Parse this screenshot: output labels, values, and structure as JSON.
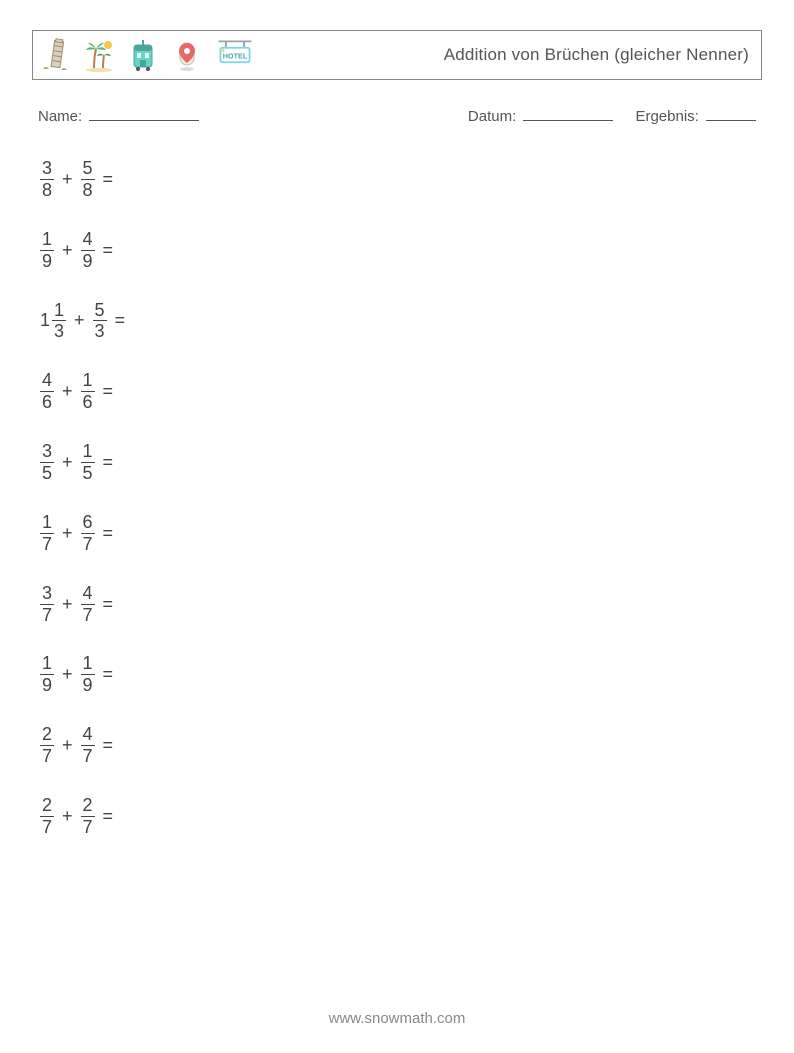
{
  "header": {
    "title": "Addition von Brüchen (gleicher Nenner)",
    "icons": [
      "pisa-tower-icon",
      "palm-trees-icon",
      "tram-icon",
      "map-pin-icon",
      "hotel-sign-icon"
    ]
  },
  "meta": {
    "name_label": "Name:",
    "date_label": "Datum:",
    "result_label": "Ergebnis:"
  },
  "op_symbol": "+",
  "eq_symbol": "=",
  "problems": [
    {
      "a_whole": "",
      "a_num": "3",
      "a_den": "8",
      "b_num": "5",
      "b_den": "8"
    },
    {
      "a_whole": "",
      "a_num": "1",
      "a_den": "9",
      "b_num": "4",
      "b_den": "9"
    },
    {
      "a_whole": "1",
      "a_num": "1",
      "a_den": "3",
      "b_num": "5",
      "b_den": "3"
    },
    {
      "a_whole": "",
      "a_num": "4",
      "a_den": "6",
      "b_num": "1",
      "b_den": "6"
    },
    {
      "a_whole": "",
      "a_num": "3",
      "a_den": "5",
      "b_num": "1",
      "b_den": "5"
    },
    {
      "a_whole": "",
      "a_num": "1",
      "a_den": "7",
      "b_num": "6",
      "b_den": "7"
    },
    {
      "a_whole": "",
      "a_num": "3",
      "a_den": "7",
      "b_num": "4",
      "b_den": "7"
    },
    {
      "a_whole": "",
      "a_num": "1",
      "a_den": "9",
      "b_num": "1",
      "b_den": "9"
    },
    {
      "a_whole": "",
      "a_num": "2",
      "a_den": "7",
      "b_num": "4",
      "b_den": "7"
    },
    {
      "a_whole": "",
      "a_num": "2",
      "a_den": "7",
      "b_num": "2",
      "b_den": "7"
    }
  ],
  "footer": "www.snowmath.com",
  "colors": {
    "text": "#555555",
    "frac": "#444444",
    "border": "#888888",
    "footer": "#888888",
    "background": "#ffffff",
    "palm_green": "#5ab56a",
    "palm_trunk": "#b08050",
    "sun": "#f5c94a",
    "tram_body": "#66d4c8",
    "tram_top": "#4aa59a",
    "pin_red": "#e46a6a",
    "pin_body": "#f2e9dc",
    "tower": "#d8d0c0",
    "tower_line": "#a09070",
    "hotel_sign": "#7cd6e8",
    "hotel_frame": "#9aa2aa"
  }
}
